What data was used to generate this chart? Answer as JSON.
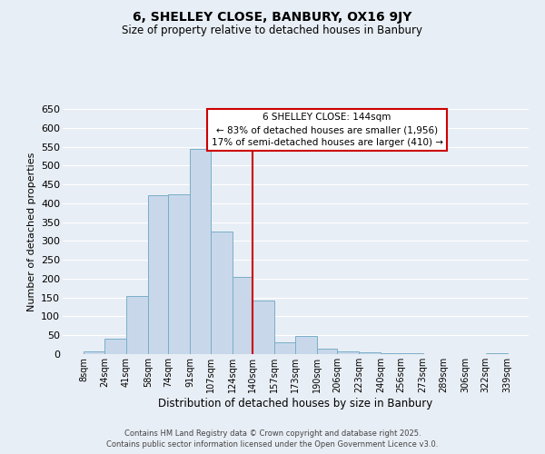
{
  "title": "6, SHELLEY CLOSE, BANBURY, OX16 9JY",
  "subtitle": "Size of property relative to detached houses in Banbury",
  "xlabel": "Distribution of detached houses by size in Banbury",
  "ylabel": "Number of detached properties",
  "bar_color": "#c8d8ea",
  "bar_edge_color": "#7aaec8",
  "background_color": "#e8eef5",
  "grid_color": "#ffffff",
  "vline_x": 140,
  "vline_color": "#cc0000",
  "bin_edges": [
    8,
    24,
    41,
    58,
    74,
    91,
    107,
    124,
    140,
    157,
    173,
    190,
    206,
    223,
    240,
    256,
    273,
    289,
    306,
    322,
    339
  ],
  "bar_heights": [
    8,
    42,
    153,
    422,
    424,
    543,
    325,
    205,
    143,
    31,
    48,
    14,
    7,
    5,
    3,
    2,
    0,
    1,
    0,
    3
  ],
  "tick_labels": [
    "8sqm",
    "24sqm",
    "41sqm",
    "58sqm",
    "74sqm",
    "91sqm",
    "107sqm",
    "124sqm",
    "140sqm",
    "157sqm",
    "173sqm",
    "190sqm",
    "206sqm",
    "223sqm",
    "240sqm",
    "256sqm",
    "273sqm",
    "289sqm",
    "306sqm",
    "322sqm",
    "339sqm"
  ],
  "ylim": [
    0,
    650
  ],
  "yticks": [
    0,
    50,
    100,
    150,
    200,
    250,
    300,
    350,
    400,
    450,
    500,
    550,
    600,
    650
  ],
  "annotation_title": "6 SHELLEY CLOSE: 144sqm",
  "annotation_line1": "← 83% of detached houses are smaller (1,956)",
  "annotation_line2": "17% of semi-detached houses are larger (410) →",
  "annotation_box_color": "#ffffff",
  "annotation_box_edge": "#cc0000",
  "footer1": "Contains HM Land Registry data © Crown copyright and database right 2025.",
  "footer2": "Contains public sector information licensed under the Open Government Licence v3.0."
}
